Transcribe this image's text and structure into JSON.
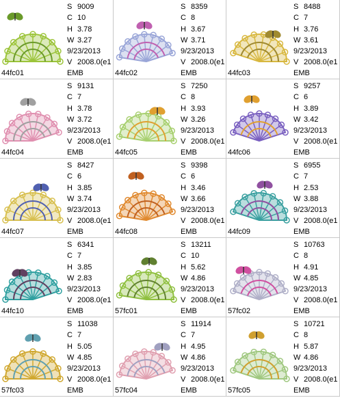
{
  "field_labels": {
    "s": "S",
    "c": "C",
    "h": "H",
    "w": "W",
    "v": "V"
  },
  "items": [
    {
      "name": "44fc01",
      "s": "9009",
      "c": "10",
      "h": "3.78",
      "w": "3.27",
      "date": "9/23/2013",
      "v": "2008.0(e1",
      "format": "EMB"
    },
    {
      "name": "44fc02",
      "s": "8359",
      "c": "8",
      "h": "3.67",
      "w": "3.71",
      "date": "9/23/2013",
      "v": "2008.0(e1",
      "format": "EMB"
    },
    {
      "name": "44fc03",
      "s": "8488",
      "c": "7",
      "h": "3.76",
      "w": "3.61",
      "date": "9/23/2013",
      "v": "2008.0(e1",
      "format": "EMB"
    },
    {
      "name": "44fc04",
      "s": "9131",
      "c": "7",
      "h": "3.78",
      "w": "3.72",
      "date": "9/23/2013",
      "v": "2008.0(e1",
      "format": "EMB"
    },
    {
      "name": "44fc05",
      "s": "7250",
      "c": "8",
      "h": "3.93",
      "w": "3.26",
      "date": "9/23/2013",
      "v": "2008.0(e1",
      "format": "EMB"
    },
    {
      "name": "44fc06",
      "s": "9257",
      "c": "6",
      "h": "3.89",
      "w": "3.42",
      "date": "9/23/2013",
      "v": "2008.0(e1",
      "format": "EMB"
    },
    {
      "name": "44fc07",
      "s": "8427",
      "c": "6",
      "h": "3.85",
      "w": "3.74",
      "date": "9/23/2013",
      "v": "2008.0(e1",
      "format": "EMB"
    },
    {
      "name": "44fc08",
      "s": "9398",
      "c": "6",
      "h": "3.46",
      "w": "3.66",
      "date": "9/23/2013",
      "v": "2008.0(e1",
      "format": "EMB"
    },
    {
      "name": "44fc09",
      "s": "6955",
      "c": "7",
      "h": "2.53",
      "w": "3.88",
      "date": "9/23/2013",
      "v": "2008.0(e1",
      "format": "EMB"
    },
    {
      "name": "44fc10",
      "s": "6341",
      "c": "7",
      "h": "3.85",
      "w": "2.83",
      "date": "9/23/2013",
      "v": "2008.0(e1",
      "format": "EMB"
    },
    {
      "name": "57fc01",
      "s": "13211",
      "c": "10",
      "h": "5.62",
      "w": "4.86",
      "date": "9/23/2013",
      "v": "2008.0(e1",
      "format": "EMB"
    },
    {
      "name": "57fc02",
      "s": "10763",
      "c": "8",
      "h": "4.91",
      "w": "4.85",
      "date": "9/23/2013",
      "v": "2008.0(e1",
      "format": "EMB"
    },
    {
      "name": "57fc03",
      "s": "11038",
      "c": "7",
      "h": "5.05",
      "w": "4.85",
      "date": "9/23/2013",
      "v": "2008.0(e1",
      "format": "EMB"
    },
    {
      "name": "57fc04",
      "s": "11914",
      "c": "7",
      "h": "4.95",
      "w": "4.86",
      "date": "9/23/2013",
      "v": "2008.0(e1",
      "format": "EMB"
    },
    {
      "name": "57fc05",
      "s": "10721",
      "c": "8",
      "h": "5.87",
      "w": "4.86",
      "date": "9/23/2013",
      "v": "2008.0(e1",
      "format": "EMB"
    }
  ]
}
